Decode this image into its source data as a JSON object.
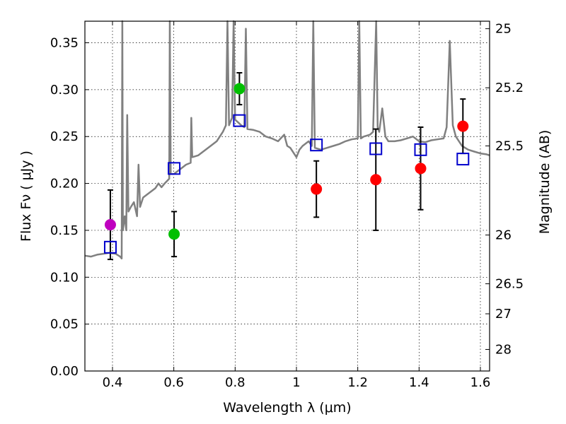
{
  "chart_data": {
    "type": "scatter",
    "xlabel": "Wavelength  λ (μm)",
    "ylabel": "Flux  Fν  ( μJy )",
    "ylabel_right": "Magnitude (AB)",
    "xlim": [
      0.31,
      1.63
    ],
    "ylim": [
      0.0,
      0.373
    ],
    "x_ticks": [
      0.4,
      0.6,
      0.8,
      1.0,
      1.2,
      1.4,
      1.6
    ],
    "x_tick_labels": [
      "0.4",
      "0.6",
      "0.8",
      "1",
      "1.2",
      "1.4",
      "1.6"
    ],
    "y_ticks": [
      0.0,
      0.05,
      0.1,
      0.15,
      0.2,
      0.25,
      0.3,
      0.35
    ],
    "y_tick_labels": [
      "0.00",
      "0.05",
      "0.10",
      "0.15",
      "0.20",
      "0.25",
      "0.30",
      "0.35"
    ],
    "right_ticks_flux": [
      0.365,
      0.302,
      0.24,
      0.145,
      0.093,
      0.061,
      0.023
    ],
    "right_tick_labels": [
      "25",
      "25.2",
      "25.5",
      "26",
      "26.5",
      "27",
      "28"
    ],
    "grid": true,
    "series": [
      {
        "marker": "circle",
        "points": [
          {
            "x": 0.393,
            "y": 0.156,
            "err": 0.037,
            "color": "#bf00bf"
          },
          {
            "x": 0.601,
            "y": 0.146,
            "err": 0.024,
            "color": "#00bf00"
          },
          {
            "x": 0.814,
            "y": 0.301,
            "err": 0.017,
            "color": "#00bf00"
          },
          {
            "x": 1.065,
            "y": 0.194,
            "err": 0.03,
            "color": "#ff0000"
          },
          {
            "x": 1.259,
            "y": 0.204,
            "err": 0.054,
            "color": "#ff0000"
          },
          {
            "x": 1.405,
            "y": 0.216,
            "err": 0.044,
            "color": "#ff0000"
          },
          {
            "x": 1.543,
            "y": 0.261,
            "err": 0.029,
            "color": "#ff0000"
          }
        ]
      },
      {
        "marker": "square",
        "color": "#0000cc",
        "points": [
          {
            "x": 0.393,
            "y": 0.132
          },
          {
            "x": 0.601,
            "y": 0.216
          },
          {
            "x": 0.814,
            "y": 0.267
          },
          {
            "x": 1.065,
            "y": 0.241
          },
          {
            "x": 1.259,
            "y": 0.237
          },
          {
            "x": 1.405,
            "y": 0.236
          },
          {
            "x": 1.543,
            "y": 0.226
          }
        ]
      },
      {
        "marker": "line",
        "color": "#808080",
        "points": [
          [
            0.31,
            0.123
          ],
          [
            0.33,
            0.122
          ],
          [
            0.35,
            0.124
          ],
          [
            0.37,
            0.125
          ],
          [
            0.39,
            0.126
          ],
          [
            0.41,
            0.125
          ],
          [
            0.425,
            0.122
          ],
          [
            0.43,
            0.12
          ],
          [
            0.432,
            0.375
          ],
          [
            0.434,
            0.15
          ],
          [
            0.44,
            0.165
          ],
          [
            0.445,
            0.15
          ],
          [
            0.448,
            0.273
          ],
          [
            0.452,
            0.17
          ],
          [
            0.46,
            0.175
          ],
          [
            0.47,
            0.18
          ],
          [
            0.48,
            0.165
          ],
          [
            0.485,
            0.22
          ],
          [
            0.49,
            0.175
          ],
          [
            0.5,
            0.185
          ],
          [
            0.52,
            0.19
          ],
          [
            0.54,
            0.195
          ],
          [
            0.55,
            0.2
          ],
          [
            0.56,
            0.196
          ],
          [
            0.57,
            0.2
          ],
          [
            0.585,
            0.205
          ],
          [
            0.587,
            0.375
          ],
          [
            0.59,
            0.21
          ],
          [
            0.6,
            0.21
          ],
          [
            0.62,
            0.215
          ],
          [
            0.64,
            0.22
          ],
          [
            0.655,
            0.222
          ],
          [
            0.657,
            0.27
          ],
          [
            0.66,
            0.228
          ],
          [
            0.68,
            0.23
          ],
          [
            0.7,
            0.235
          ],
          [
            0.72,
            0.24
          ],
          [
            0.74,
            0.245
          ],
          [
            0.75,
            0.25
          ],
          [
            0.76,
            0.255
          ],
          [
            0.77,
            0.262
          ],
          [
            0.775,
            0.375
          ],
          [
            0.78,
            0.262
          ],
          [
            0.79,
            0.27
          ],
          [
            0.795,
            0.375
          ],
          [
            0.8,
            0.268
          ],
          [
            0.81,
            0.265
          ],
          [
            0.82,
            0.262
          ],
          [
            0.83,
            0.26
          ],
          [
            0.835,
            0.365
          ],
          [
            0.84,
            0.258
          ],
          [
            0.86,
            0.257
          ],
          [
            0.88,
            0.255
          ],
          [
            0.9,
            0.25
          ],
          [
            0.92,
            0.248
          ],
          [
            0.94,
            0.245
          ],
          [
            0.96,
            0.252
          ],
          [
            0.97,
            0.24
          ],
          [
            0.98,
            0.238
          ],
          [
            1.0,
            0.228
          ],
          [
            1.01,
            0.236
          ],
          [
            1.02,
            0.24
          ],
          [
            1.04,
            0.245
          ],
          [
            1.05,
            0.24
          ],
          [
            1.055,
            0.375
          ],
          [
            1.06,
            0.238
          ],
          [
            1.08,
            0.236
          ],
          [
            1.1,
            0.238
          ],
          [
            1.12,
            0.24
          ],
          [
            1.14,
            0.242
          ],
          [
            1.16,
            0.245
          ],
          [
            1.18,
            0.247
          ],
          [
            1.2,
            0.248
          ],
          [
            1.205,
            0.375
          ],
          [
            1.21,
            0.248
          ],
          [
            1.22,
            0.25
          ],
          [
            1.24,
            0.252
          ],
          [
            1.25,
            0.255
          ],
          [
            1.26,
            0.375
          ],
          [
            1.265,
            0.26
          ],
          [
            1.27,
            0.255
          ],
          [
            1.28,
            0.28
          ],
          [
            1.29,
            0.25
          ],
          [
            1.3,
            0.245
          ],
          [
            1.32,
            0.245
          ],
          [
            1.34,
            0.246
          ],
          [
            1.36,
            0.248
          ],
          [
            1.38,
            0.25
          ],
          [
            1.4,
            0.245
          ],
          [
            1.42,
            0.244
          ],
          [
            1.44,
            0.246
          ],
          [
            1.46,
            0.247
          ],
          [
            1.48,
            0.248
          ],
          [
            1.49,
            0.26
          ],
          [
            1.5,
            0.352
          ],
          [
            1.51,
            0.262
          ],
          [
            1.52,
            0.25
          ],
          [
            1.54,
            0.24
          ],
          [
            1.56,
            0.236
          ],
          [
            1.58,
            0.234
          ],
          [
            1.6,
            0.232
          ],
          [
            1.62,
            0.231
          ],
          [
            1.63,
            0.23
          ]
        ]
      }
    ]
  }
}
